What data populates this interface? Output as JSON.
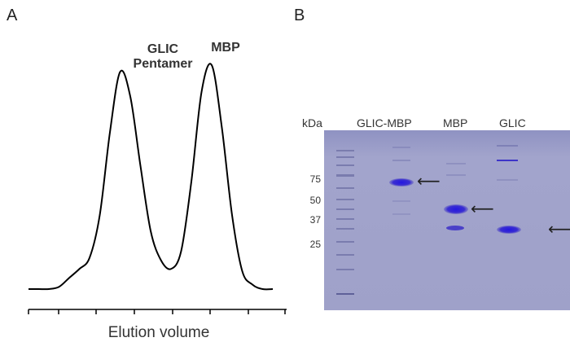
{
  "panels": {
    "a": {
      "letter": "A",
      "peak_labels": {
        "glic_line1": "GLIC",
        "glic_line2": "Pentamer",
        "mbp": "MBP"
      },
      "xlabel": "Elution volume"
    },
    "b": {
      "letter": "B",
      "kda_label": "kDa",
      "lanes": [
        "GLIC-MBP",
        "MBP",
        "GLIC"
      ],
      "markers_kda": [
        "75",
        "50",
        "37",
        "25"
      ]
    }
  },
  "chart_data": {
    "type": "line",
    "title": "",
    "xlabel": "Elution volume",
    "ylabel": "",
    "grid": false,
    "series": [
      {
        "x": [
          0,
          1,
          2,
          3,
          4,
          5,
          6,
          7,
          8,
          9,
          10,
          11,
          12,
          13,
          14,
          15,
          16,
          17,
          18,
          19,
          20,
          21,
          22,
          23,
          24
        ],
        "y": [
          0.0,
          0.0,
          0.0,
          0.01,
          0.05,
          0.09,
          0.14,
          0.33,
          0.7,
          0.97,
          0.86,
          0.55,
          0.26,
          0.13,
          0.09,
          0.17,
          0.48,
          0.88,
          1.0,
          0.72,
          0.33,
          0.08,
          0.02,
          0.0,
          0.0
        ]
      }
    ],
    "annotations": [
      "GLIC Pentamer",
      "MBP"
    ]
  },
  "colors": {
    "gel_bg": "#9d9fc9",
    "band": "#3b2fd6",
    "line": "#000000"
  }
}
